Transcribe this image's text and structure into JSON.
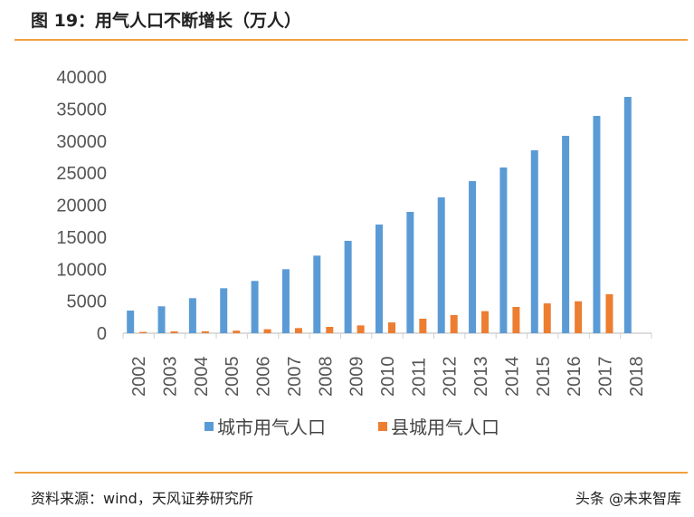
{
  "header": {
    "title": "图 19：用气人口不断增长（万人）"
  },
  "footer": {
    "source": "资料来源：wind，天风证券研究所",
    "watermark": "头条 @未来智库"
  },
  "chart_data": {
    "type": "bar",
    "title": "图 19：用气人口不断增长（万人）",
    "categories": [
      "2002",
      "2003",
      "2004",
      "2005",
      "2006",
      "2007",
      "2008",
      "2009",
      "2010",
      "2011",
      "2012",
      "2013",
      "2014",
      "2015",
      "2016",
      "2017",
      "2018"
    ],
    "series": [
      {
        "name": "城市用气人口",
        "color": "#5b9bd5",
        "values": [
          3530,
          4200,
          5470,
          7020,
          8160,
          9990,
          12110,
          14420,
          16960,
          18940,
          21200,
          23740,
          25870,
          28550,
          30810,
          33920,
          36890
        ]
      },
      {
        "name": "县城用气人口",
        "color": "#ed7d31",
        "values": [
          200,
          280,
          300,
          400,
          620,
          800,
          990,
          1220,
          1680,
          2260,
          2830,
          3440,
          4100,
          4650,
          4980,
          6080,
          null
        ]
      }
    ],
    "yticks": [
      "0",
      "5000",
      "10000",
      "15000",
      "20000",
      "25000",
      "30000",
      "35000",
      "40000"
    ],
    "ylim": [
      0,
      40000
    ],
    "xlabel": "",
    "ylabel": "",
    "legend": "bottom",
    "grid": false
  }
}
